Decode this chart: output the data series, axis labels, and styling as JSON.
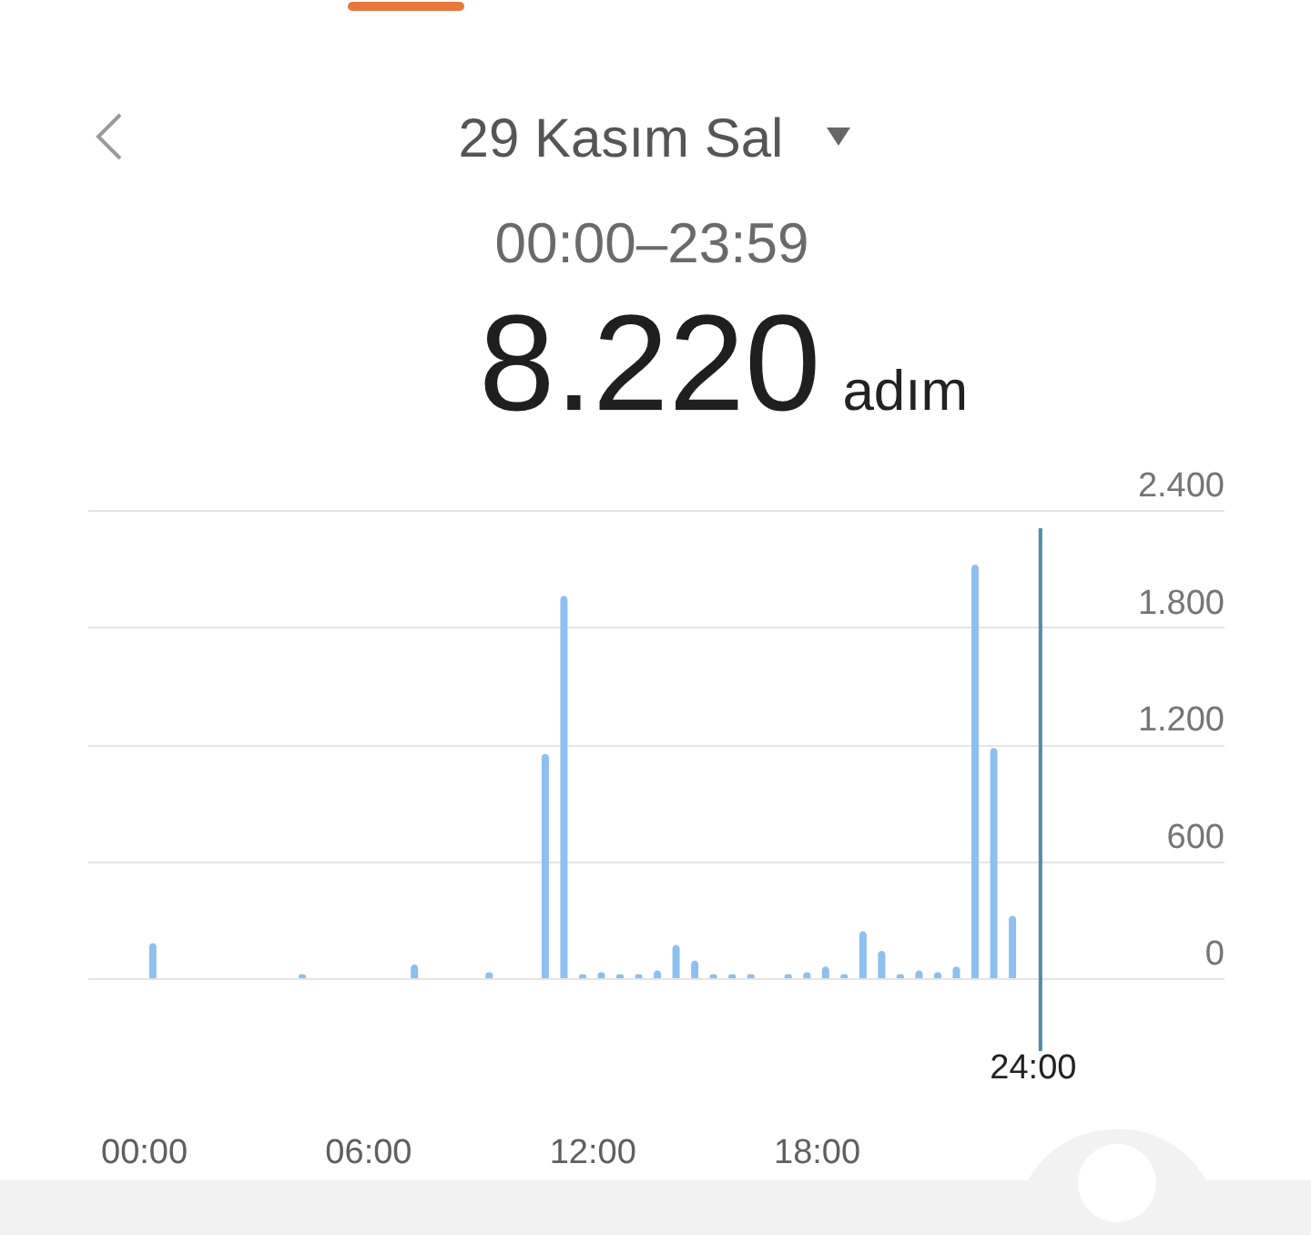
{
  "chart_data": {
    "type": "bar",
    "title": "29 Kasım Sal",
    "subtitle": "00:00–23:59",
    "annotations": [
      "8.220",
      "adım"
    ],
    "x": [
      0.25,
      4.25,
      7.25,
      9.25,
      10.75,
      11.25,
      11.75,
      12.25,
      12.75,
      13.25,
      13.75,
      14.25,
      14.75,
      15.25,
      15.75,
      16.25,
      17.25,
      17.75,
      18.25,
      18.75,
      19.25,
      19.75,
      20.25,
      20.75,
      21.25,
      21.75,
      22.25,
      22.75,
      23.25
    ],
    "values": [
      180,
      20,
      70,
      30,
      1150,
      1960,
      20,
      30,
      20,
      20,
      40,
      170,
      90,
      20,
      20,
      20,
      20,
      30,
      60,
      20,
      240,
      140,
      20,
      40,
      30,
      60,
      2120,
      1180,
      320
    ],
    "color": "#8ebfee",
    "xlim": [
      -1.5,
      28.9
    ],
    "xticks": [
      {
        "value": 0,
        "label": "00:00"
      },
      {
        "value": 6,
        "label": "06:00"
      },
      {
        "value": 12,
        "label": "12:00"
      },
      {
        "value": 18,
        "label": "18:00"
      }
    ],
    "ylim": [
      0,
      2400
    ],
    "yticks": [
      0,
      600,
      {
        "value": 1200,
        "label": "1.200"
      },
      {
        "value": 1800,
        "label": "1.800"
      },
      {
        "value": 2400,
        "label": "2.400"
      }
    ],
    "grid": "y",
    "ref_lines": [
      {
        "axis": "x",
        "value": 24,
        "label": "24:00",
        "color": "#4f8ba6"
      }
    ]
  }
}
